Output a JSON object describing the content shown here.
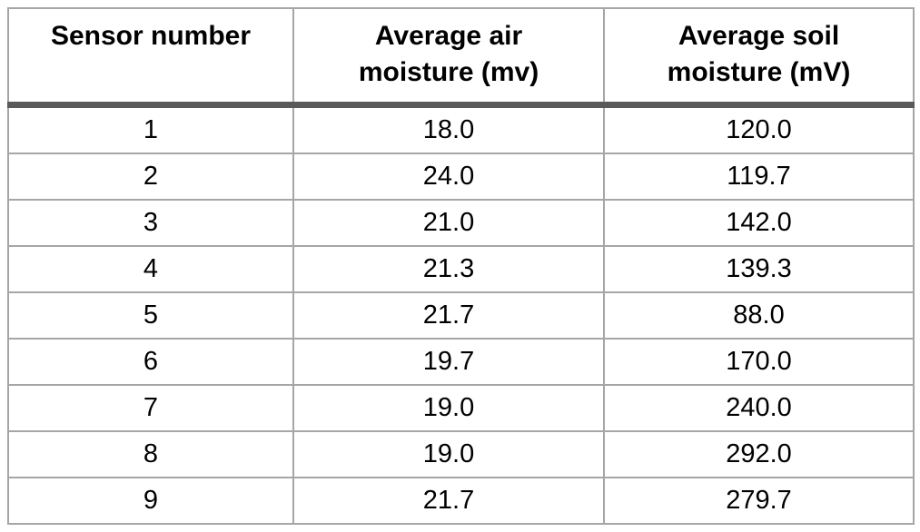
{
  "header": {
    "col1": "Sensor number",
    "col2_line1": "Average air",
    "col2_line2": "moisture (mv)",
    "col3_line1": "Average soil",
    "col3_line2": "moisture (mV)"
  },
  "rows": [
    [
      "1",
      "18.0",
      "120.0"
    ],
    [
      "2",
      "24.0",
      "119.7"
    ],
    [
      "3",
      "21.0",
      "142.0"
    ],
    [
      "4",
      "21.3",
      "139.3"
    ],
    [
      "5",
      "21.7",
      "88.0"
    ],
    [
      "6",
      "19.7",
      "170.0"
    ],
    [
      "7",
      "19.0",
      "240.0"
    ],
    [
      "8",
      "19.0",
      "292.0"
    ],
    [
      "9",
      "21.7",
      "279.7"
    ]
  ],
  "colors": {
    "text": "#000000",
    "thin_border": "#a6a6a6",
    "thick_header_border": "#595959",
    "background": "#ffffff"
  },
  "chart_data": {
    "type": "table",
    "title": "",
    "columns": [
      "Sensor number",
      "Average air moisture (mv)",
      "Average soil moisture (mV)"
    ],
    "sensor_numbers": [
      1,
      2,
      3,
      4,
      5,
      6,
      7,
      8,
      9
    ],
    "series": [
      {
        "name": "Average air moisture (mv)",
        "values": [
          18.0,
          24.0,
          21.0,
          21.3,
          21.7,
          19.7,
          19.0,
          19.0,
          21.7
        ]
      },
      {
        "name": "Average soil moisture (mV)",
        "values": [
          120.0,
          119.7,
          142.0,
          139.3,
          88.0,
          170.0,
          240.0,
          292.0,
          279.7
        ]
      }
    ],
    "layout_hints": {
      "header_bottom_border": "thick dark gray",
      "grid": "thin light gray lines",
      "header_style": "bold, column 1 single line, columns 2-3 two lines"
    }
  }
}
